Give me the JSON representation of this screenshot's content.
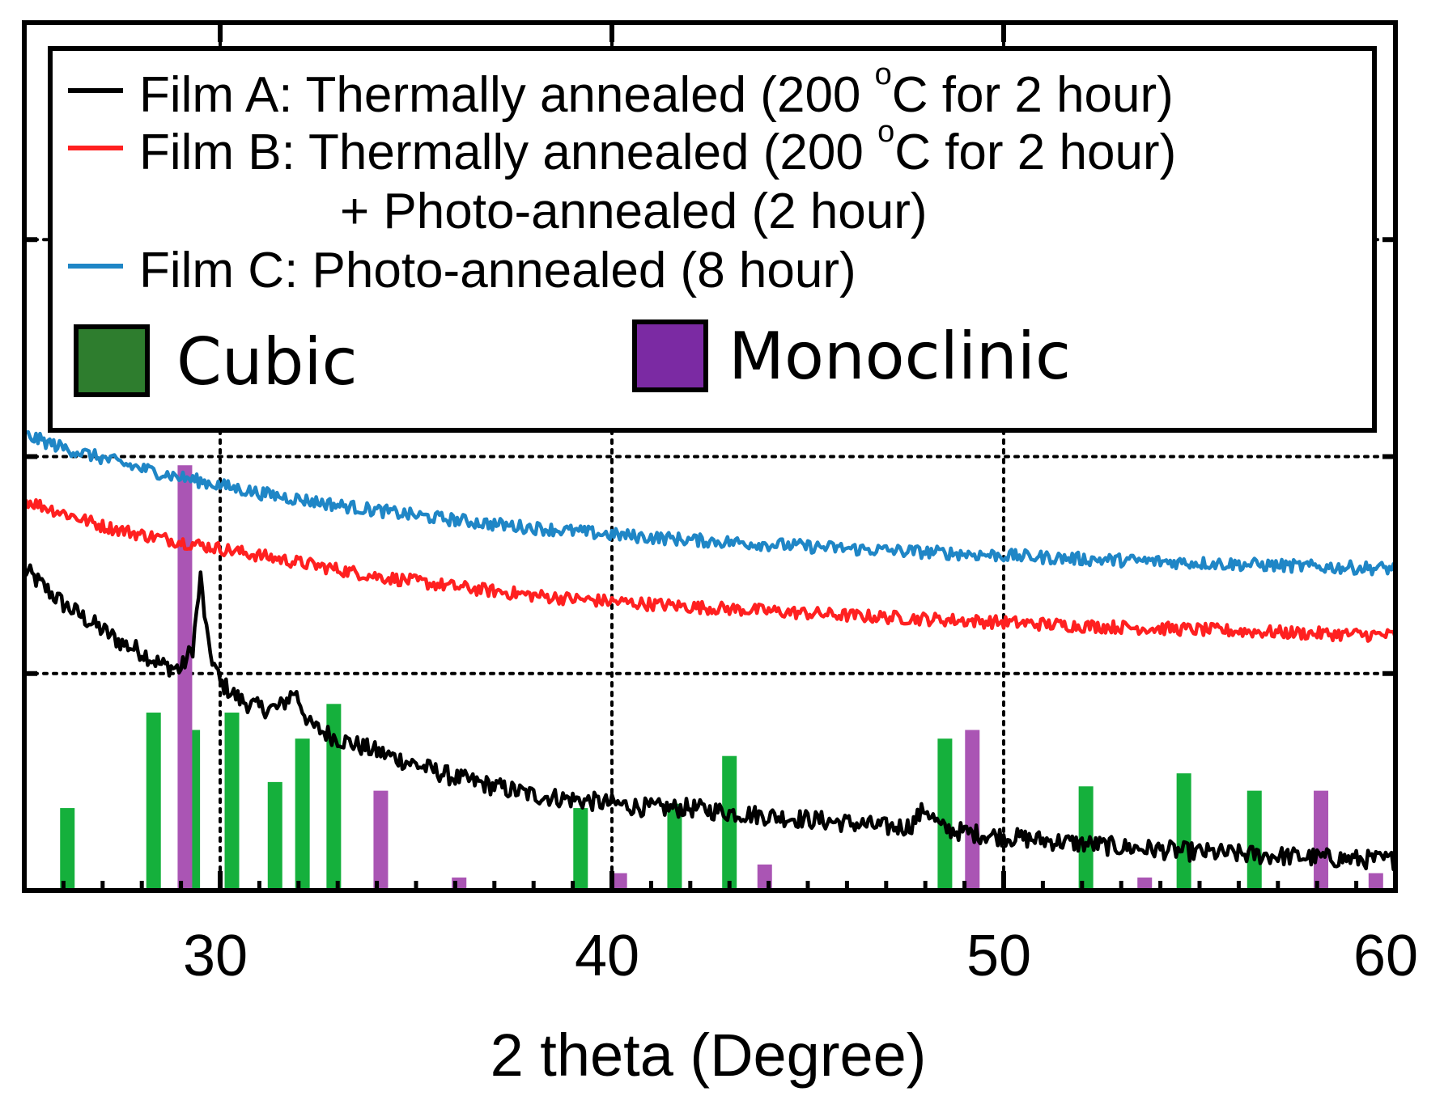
{
  "chart_data": {
    "type": "line",
    "title": "",
    "xlabel": "2 theta (Degree)",
    "ylabel": "",
    "xlim": [
      25,
      60
    ],
    "ylim": [
      0,
      100
    ],
    "x_ticks": [
      30,
      40,
      50,
      60
    ],
    "x_tick_labels": [
      "30",
      "40",
      "50",
      "60"
    ],
    "grid": true,
    "legend_position": "top",
    "legend": {
      "film_a": {
        "text": "Film A: Thermally annealed (200 ",
        "sup": "o",
        "tail": "C for 2 hour)"
      },
      "film_b": {
        "text": "Film B: Thermally annealed (200 ",
        "sup": "o",
        "tail": "C for 2 hour)",
        "line2": "+ Photo-annealed (2 hour)"
      },
      "film_c": {
        "text": "Film C: Photo-annealed (8 hour)"
      },
      "cubic": "Cubic",
      "monoclinic": "Monoclinic"
    },
    "colors": {
      "film_a": "#000000",
      "film_b": "#ff2020",
      "film_c": "#1f86c6",
      "cubic_bar": "#15b03c",
      "cubic_legend": "#2e7d2e",
      "monoclinic_bar": "#aa55b4",
      "monoclinic_legend": "#7b2aa3"
    },
    "series": [
      {
        "name": "Film A",
        "x": [
          25,
          25.5,
          26,
          26.5,
          27,
          27.5,
          28,
          28.5,
          29,
          29.3,
          29.5,
          29.7,
          30,
          30.5,
          31,
          31.5,
          31.9,
          32.3,
          33,
          34,
          35,
          36,
          37,
          38,
          39,
          40,
          41,
          42,
          43,
          44,
          45,
          46,
          47,
          47.6,
          48,
          48.4,
          49,
          50,
          51,
          52,
          53,
          54,
          55,
          56,
          57,
          58,
          59,
          60
        ],
        "y": [
          37,
          35,
          33,
          31.5,
          30,
          28.5,
          27.5,
          26,
          25.5,
          28,
          36,
          28,
          24,
          22,
          21,
          21,
          23,
          19,
          17.5,
          16,
          14.5,
          13,
          12,
          11,
          10.5,
          10,
          9.5,
          9.5,
          9,
          8.6,
          8.2,
          7.8,
          7.3,
          7.4,
          9.5,
          7.2,
          6.7,
          6.2,
          5.8,
          5.4,
          5,
          4.7,
          4.4,
          4.2,
          4,
          3.8,
          3.6,
          3.5
        ]
      },
      {
        "name": "Film B",
        "x": [
          25,
          26,
          27,
          28,
          29,
          30,
          31,
          32,
          33,
          34,
          35,
          36,
          37,
          38,
          39,
          40,
          42,
          44,
          46,
          48,
          50,
          52,
          54,
          56,
          58,
          60
        ],
        "y": [
          45,
          43.5,
          42,
          41,
          40.2,
          39.4,
          38.6,
          37.8,
          37,
          36.2,
          35.6,
          35,
          34.5,
          34,
          33.6,
          33.3,
          32.7,
          32.2,
          31.7,
          31.3,
          30.9,
          30.5,
          30.2,
          29.9,
          29.6,
          29.4
        ]
      },
      {
        "name": "Film C",
        "x": [
          25,
          26,
          27,
          28,
          29,
          30,
          31,
          32,
          33,
          34,
          35,
          36,
          37,
          38,
          39,
          40,
          42,
          44,
          46,
          48,
          50,
          52,
          54,
          56,
          58,
          60
        ],
        "y": [
          52.5,
          51,
          49.8,
          48.6,
          47.6,
          46.7,
          45.8,
          45.1,
          44.4,
          43.8,
          43.2,
          42.7,
          42.2,
          41.8,
          41.4,
          41,
          40.4,
          39.9,
          39.4,
          39,
          38.6,
          38.2,
          37.9,
          37.6,
          37.3,
          37.1
        ]
      }
    ],
    "reference_bars": {
      "cubic": {
        "x": [
          26.1,
          28.3,
          29.3,
          30.3,
          31.4,
          32.1,
          32.9,
          39.2,
          41.6,
          43.0,
          48.5,
          52.1,
          54.6,
          56.4
        ],
        "y": [
          9.5,
          20.5,
          18.5,
          20.5,
          12.5,
          17.5,
          21.5,
          9.5,
          10,
          15.5,
          17.5,
          12,
          13.5,
          11.5
        ]
      },
      "monoclinic": {
        "x": [
          29.1,
          34.1,
          36.1,
          40.2,
          43.9,
          49.2,
          53.6,
          58.1,
          59.5
        ],
        "y": [
          49,
          11.5,
          1.5,
          2,
          3,
          18.5,
          1.5,
          11.5,
          2
        ]
      }
    }
  }
}
